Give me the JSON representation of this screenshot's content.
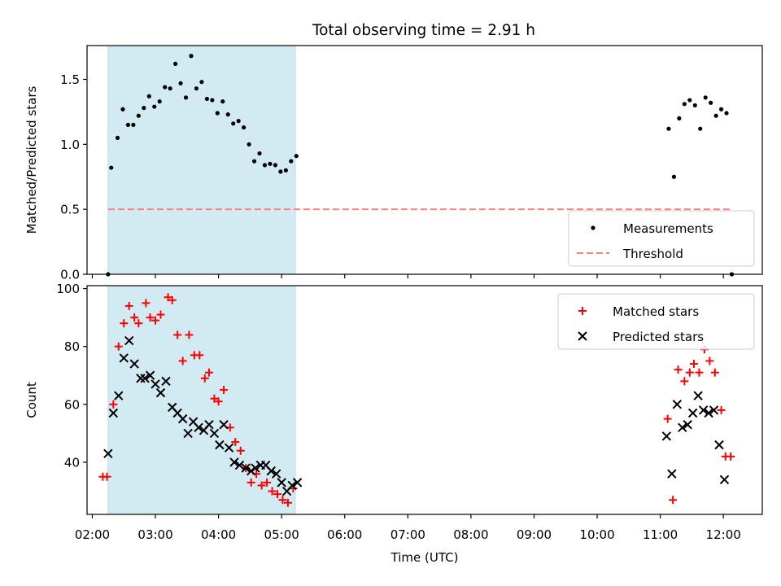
{
  "figure_title": "Total observing time = 2.91 h",
  "chart_data": [
    {
      "type": "scatter",
      "xlabel": "",
      "ylabel": "Matched/Predicted stars",
      "xlim": [
        "01:55",
        "12:37"
      ],
      "ylim": [
        0,
        1.76
      ],
      "xticks": [
        "02:00",
        "03:00",
        "04:00",
        "05:00",
        "06:00",
        "07:00",
        "08:00",
        "09:00",
        "10:00",
        "11:00",
        "12:00"
      ],
      "yticks": [
        0.0,
        0.5,
        1.0,
        1.5
      ],
      "ytick_labels": [
        "0.0",
        "0.5",
        "1.0",
        "1.5"
      ],
      "legend_position": "lower right",
      "shaded_interval": {
        "x_start": "02:15",
        "x_end": "05:13",
        "color": "#add8e6"
      },
      "series": [
        {
          "name": "Measurements",
          "kind": "scatter",
          "marker": "dot",
          "color": "#000000",
          "points": [
            [
              "02:15",
              0.0
            ],
            [
              "02:18",
              0.82
            ],
            [
              "02:24",
              1.05
            ],
            [
              "02:29",
              1.27
            ],
            [
              "02:34",
              1.15
            ],
            [
              "02:39",
              1.15
            ],
            [
              "02:44",
              1.22
            ],
            [
              "02:49",
              1.28
            ],
            [
              "02:54",
              1.37
            ],
            [
              "02:59",
              1.29
            ],
            [
              "03:04",
              1.33
            ],
            [
              "03:09",
              1.44
            ],
            [
              "03:14",
              1.43
            ],
            [
              "03:19",
              1.62
            ],
            [
              "03:24",
              1.47
            ],
            [
              "03:29",
              1.36
            ],
            [
              "03:34",
              1.68
            ],
            [
              "03:39",
              1.43
            ],
            [
              "03:44",
              1.48
            ],
            [
              "03:49",
              1.35
            ],
            [
              "03:54",
              1.34
            ],
            [
              "03:59",
              1.24
            ],
            [
              "04:04",
              1.33
            ],
            [
              "04:09",
              1.23
            ],
            [
              "04:14",
              1.16
            ],
            [
              "04:19",
              1.18
            ],
            [
              "04:24",
              1.13
            ],
            [
              "04:29",
              1.0
            ],
            [
              "04:34",
              0.87
            ],
            [
              "04:39",
              0.93
            ],
            [
              "04:44",
              0.84
            ],
            [
              "04:49",
              0.85
            ],
            [
              "04:54",
              0.84
            ],
            [
              "04:59",
              0.79
            ],
            [
              "05:04",
              0.8
            ],
            [
              "05:09",
              0.87
            ],
            [
              "05:14",
              0.91
            ],
            [
              "11:08",
              1.12
            ],
            [
              "11:13",
              0.75
            ],
            [
              "11:18",
              1.2
            ],
            [
              "11:23",
              1.31
            ],
            [
              "11:28",
              1.34
            ],
            [
              "11:33",
              1.3
            ],
            [
              "11:38",
              1.12
            ],
            [
              "11:43",
              1.36
            ],
            [
              "11:48",
              1.32
            ],
            [
              "11:53",
              1.22
            ],
            [
              "11:58",
              1.27
            ],
            [
              "12:03",
              1.24
            ],
            [
              "12:08",
              0.0
            ]
          ]
        },
        {
          "name": "Threshold",
          "kind": "line",
          "style": "dashed",
          "color": "#ff7f7f",
          "x": [
            "02:15",
            "12:08"
          ],
          "y": [
            0.5,
            0.5
          ]
        }
      ]
    },
    {
      "type": "scatter",
      "xlabel": "Time (UTC)",
      "ylabel": "Count",
      "xlim": [
        "01:55",
        "12:37"
      ],
      "ylim": [
        22,
        101
      ],
      "xticks": [
        "02:00",
        "03:00",
        "04:00",
        "05:00",
        "06:00",
        "07:00",
        "08:00",
        "09:00",
        "10:00",
        "11:00",
        "12:00"
      ],
      "xtick_labels": [
        "02:00",
        "03:00",
        "04:00",
        "05:00",
        "06:00",
        "07:00",
        "08:00",
        "09:00",
        "10:00",
        "11:00",
        "12:00"
      ],
      "yticks": [
        40,
        60,
        80,
        100
      ],
      "ytick_labels": [
        "40",
        "60",
        "80",
        "100"
      ],
      "legend_position": "upper right",
      "shaded_interval": {
        "x_start": "02:15",
        "x_end": "05:13",
        "color": "#add8e6"
      },
      "series": [
        {
          "name": "Matched stars",
          "kind": "scatter",
          "marker": "plus",
          "color": "#ff0000",
          "points": [
            [
              "02:10",
              35
            ],
            [
              "02:14",
              35
            ],
            [
              "02:20",
              60
            ],
            [
              "02:25",
              80
            ],
            [
              "02:30",
              88
            ],
            [
              "02:35",
              94
            ],
            [
              "02:40",
              90
            ],
            [
              "02:44",
              88
            ],
            [
              "02:51",
              95
            ],
            [
              "02:55",
              90
            ],
            [
              "03:00",
              89
            ],
            [
              "03:05",
              91
            ],
            [
              "03:12",
              97
            ],
            [
              "03:16",
              96
            ],
            [
              "03:21",
              84
            ],
            [
              "03:26",
              75
            ],
            [
              "03:32",
              84
            ],
            [
              "03:37",
              77
            ],
            [
              "03:42",
              77
            ],
            [
              "03:47",
              69
            ],
            [
              "03:51",
              71
            ],
            [
              "03:56",
              62
            ],
            [
              "04:00",
              61
            ],
            [
              "04:05",
              65
            ],
            [
              "04:11",
              52
            ],
            [
              "04:16",
              47
            ],
            [
              "04:21",
              44
            ],
            [
              "04:26",
              38
            ],
            [
              "04:31",
              33
            ],
            [
              "04:36",
              36
            ],
            [
              "04:41",
              32
            ],
            [
              "04:46",
              33
            ],
            [
              "04:51",
              30
            ],
            [
              "04:56",
              29
            ],
            [
              "05:01",
              27
            ],
            [
              "05:06",
              26
            ],
            [
              "05:11",
              31
            ],
            [
              "11:07",
              55
            ],
            [
              "11:12",
              27
            ],
            [
              "11:17",
              72
            ],
            [
              "11:23",
              68
            ],
            [
              "11:28",
              71
            ],
            [
              "11:32",
              74
            ],
            [
              "11:37",
              71
            ],
            [
              "11:42",
              79
            ],
            [
              "11:47",
              75
            ],
            [
              "11:52",
              71
            ],
            [
              "11:58",
              58
            ],
            [
              "12:02",
              42
            ],
            [
              "12:07",
              42
            ]
          ]
        },
        {
          "name": "Predicted stars",
          "kind": "scatter",
          "marker": "x",
          "color": "#000000",
          "points": [
            [
              "02:15",
              43
            ],
            [
              "02:20",
              57
            ],
            [
              "02:25",
              63
            ],
            [
              "02:30",
              76
            ],
            [
              "02:35",
              82
            ],
            [
              "02:40",
              74
            ],
            [
              "02:46",
              69
            ],
            [
              "02:50",
              69
            ],
            [
              "02:55",
              70
            ],
            [
              "03:00",
              67
            ],
            [
              "03:05",
              64
            ],
            [
              "03:10",
              68
            ],
            [
              "03:16",
              59
            ],
            [
              "03:21",
              57
            ],
            [
              "03:26",
              55
            ],
            [
              "03:31",
              50
            ],
            [
              "03:36",
              54
            ],
            [
              "03:41",
              52
            ],
            [
              "03:46",
              51
            ],
            [
              "03:51",
              53
            ],
            [
              "03:56",
              50
            ],
            [
              "04:01",
              46
            ],
            [
              "04:05",
              53
            ],
            [
              "04:10",
              45
            ],
            [
              "04:15",
              40
            ],
            [
              "04:20",
              39
            ],
            [
              "04:26",
              38
            ],
            [
              "04:31",
              37
            ],
            [
              "04:35",
              38
            ],
            [
              "04:40",
              39
            ],
            [
              "04:45",
              39
            ],
            [
              "04:50",
              37
            ],
            [
              "04:55",
              36
            ],
            [
              "05:00",
              33
            ],
            [
              "05:05",
              30
            ],
            [
              "05:10",
              32
            ],
            [
              "05:15",
              33
            ],
            [
              "11:06",
              49
            ],
            [
              "11:11",
              36
            ],
            [
              "11:16",
              60
            ],
            [
              "11:21",
              52
            ],
            [
              "11:26",
              53
            ],
            [
              "11:31",
              57
            ],
            [
              "11:36",
              63
            ],
            [
              "11:41",
              58
            ],
            [
              "11:46",
              57
            ],
            [
              "11:51",
              58
            ],
            [
              "11:56",
              46
            ],
            [
              "12:01",
              34
            ]
          ]
        }
      ]
    }
  ]
}
